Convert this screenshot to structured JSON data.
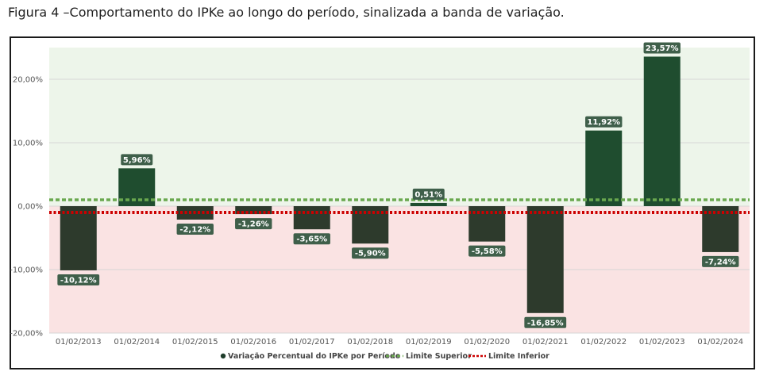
{
  "caption": "Figura 4 –Comportamento do IPKe ao longo do período, sinalizada a banda de variação.",
  "chart_data": {
    "type": "bar",
    "categories": [
      "01/02/2013",
      "01/02/2014",
      "01/02/2015",
      "01/02/2016",
      "01/02/2017",
      "01/02/2018",
      "01/02/2019",
      "01/02/2020",
      "01/02/2021",
      "01/02/2022",
      "01/02/2023",
      "01/02/2024"
    ],
    "series": [
      {
        "name": "Variação Percentual do IPKe por Período",
        "values": [
          -10.12,
          5.96,
          -2.12,
          -1.26,
          -3.65,
          -5.9,
          0.51,
          -5.58,
          -16.85,
          11.92,
          23.57,
          -7.24
        ],
        "labels": [
          "-10,12%",
          "5,96%",
          "-2,12%",
          "-1,26%",
          "-3,65%",
          "-5,90%",
          "0,51%",
          "-5,58%",
          "-16,85%",
          "11,92%",
          "23,57%",
          "-7,24%"
        ]
      }
    ],
    "reference_lines": [
      {
        "name": "Limite Superior",
        "value": 1.0,
        "color": "#6aa84f",
        "style": "dashed"
      },
      {
        "name": "Limite Inferior",
        "value": -1.0,
        "color": "#cc0000",
        "style": "dotted"
      }
    ],
    "ylim": [
      -20,
      25
    ],
    "yticks": [
      -20,
      -10,
      0,
      10,
      20
    ],
    "ytick_labels": [
      "-20,00%",
      "-10,00%",
      "0,00%",
      "10,00%",
      "20,00%"
    ],
    "legend_position": "bottom",
    "colors": {
      "positive_bar": "#1f4d2f",
      "negative_bar": "#2d3a2c",
      "label_bg": "#3f5f4a",
      "upper_band": "#edf5ea",
      "lower_band": "#fae3e3",
      "legend_marker": "#1f3d2b"
    }
  }
}
